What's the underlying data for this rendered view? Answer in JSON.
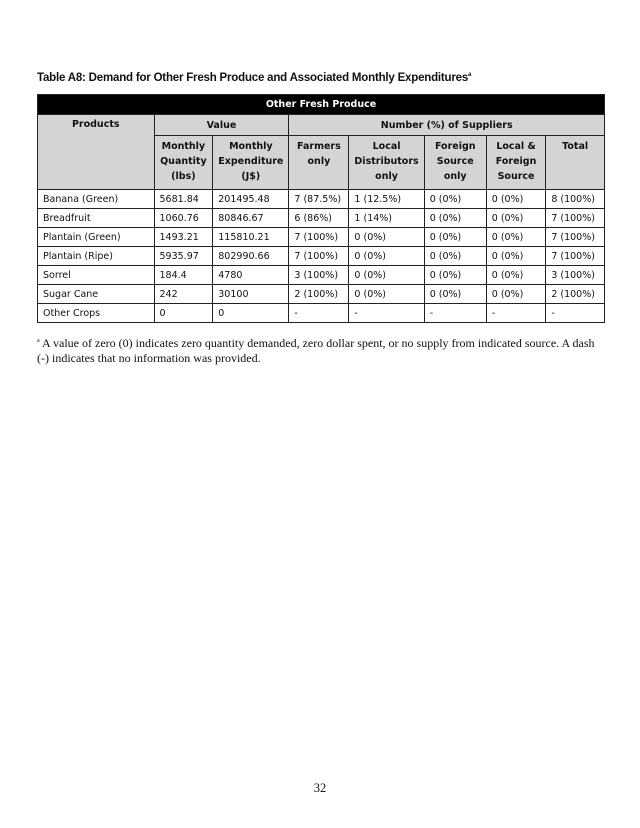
{
  "title": "Table A8: Demand for Other Fresh Produce and Associated  Monthly Expenditures",
  "title_sup": "a",
  "table": {
    "group_title": "Other Fresh Produce",
    "header_products": "Products",
    "header_value": "Value",
    "header_suppliers": "Number (%) of Suppliers",
    "columns": [
      [
        "Monthly",
        "Quantity",
        "(lbs)"
      ],
      [
        "Monthly",
        "Expenditure",
        "(J$)"
      ],
      [
        "Farmers",
        "only",
        ""
      ],
      [
        "Local",
        "Distributors",
        "only"
      ],
      [
        "Foreign",
        "Source",
        "only"
      ],
      [
        "Local &",
        "Foreign",
        "Source"
      ],
      [
        "Total",
        "",
        ""
      ]
    ],
    "rows": [
      [
        "Banana (Green)",
        "5681.84",
        "201495.48",
        "7 (87.5%)",
        "1 (12.5%)",
        "0 (0%)",
        "0 (0%)",
        "8 (100%)"
      ],
      [
        "Breadfruit",
        "1060.76",
        "80846.67",
        "6 (86%)",
        "1 (14%)",
        "0 (0%)",
        "0 (0%)",
        "7 (100%)"
      ],
      [
        "Plantain (Green)",
        "1493.21",
        "115810.21",
        "7 (100%)",
        "0 (0%)",
        "0 (0%)",
        "0 (0%)",
        "7 (100%)"
      ],
      [
        "Plantain (Ripe)",
        "5935.97",
        "802990.66",
        "7 (100%)",
        "0 (0%)",
        "0 (0%)",
        "0 (0%)",
        "7 (100%)"
      ],
      [
        "Sorrel",
        "184.4",
        "4780",
        "3 (100%)",
        "0 (0%)",
        "0 (0%)",
        "0 (0%)",
        "3 (100%)"
      ],
      [
        "Sugar Cane",
        "242",
        "30100",
        "2 (100%)",
        "0 (0%)",
        "0 (0%)",
        "0 (0%)",
        "2 (100%)"
      ],
      [
        "Other Crops",
        "0",
        "0",
        "-",
        "-",
        "-",
        "-",
        "-"
      ]
    ]
  },
  "footnote_mark": "a",
  "footnote": " A value of zero (0) indicates zero quantity demanded, zero dollar spent, or no supply from indicated source.  A dash (-) indicates that no information was provided.",
  "page_number": "32"
}
